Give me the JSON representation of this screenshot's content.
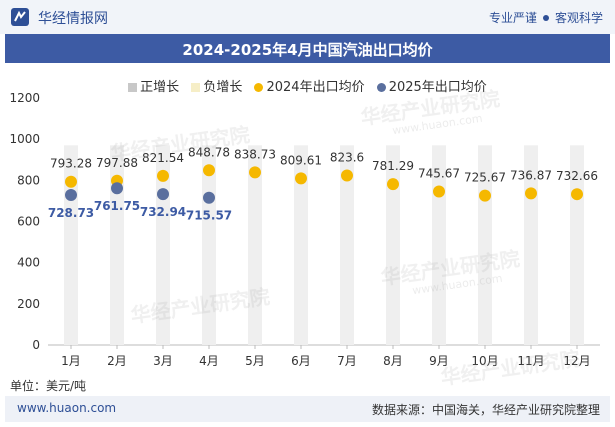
{
  "header": {
    "brand": "华经情报网",
    "tag1": "专业严谨",
    "tag2": "客观科学"
  },
  "title": "2024-2025年4月中国汽油出口均价",
  "legend": {
    "positive": "正增长",
    "negative": "负增长",
    "series2024": "2024年出口均价",
    "series2025": "2025年出口均价"
  },
  "unit": "单位：美元/吨",
  "footer": {
    "site": "www.huaon.com",
    "source": "数据来源：中国海关，华经产业研究院整理"
  },
  "watermark": {
    "text": "华经产业研究院",
    "url": "www.huaon.com"
  },
  "colors": {
    "bar": "#efefef",
    "series2024": "#f5b800",
    "series2025": "#5a6f9e",
    "positive": "#c8c8c8",
    "negative": "#f6eec7",
    "titlebar": "#3d5ba4"
  },
  "chart_data": {
    "type": "scatter",
    "categories": [
      "1月",
      "2月",
      "3月",
      "4月",
      "5月",
      "6月",
      "7月",
      "8月",
      "9月",
      "10月",
      "11月",
      "12月"
    ],
    "series": [
      {
        "name": "2024年出口均价",
        "values": [
          793.28,
          797.88,
          821.54,
          848.78,
          838.73,
          809.61,
          823.6,
          781.29,
          745.67,
          725.67,
          736.87,
          732.66
        ]
      },
      {
        "name": "2025年出口均价",
        "values": [
          728.73,
          761.75,
          732.94,
          715.57
        ]
      }
    ],
    "ylim": [
      0,
      1200
    ],
    "yticks": [
      0,
      200,
      400,
      600,
      800,
      1000,
      1200
    ],
    "background_bars": true,
    "legend_position": "top"
  }
}
